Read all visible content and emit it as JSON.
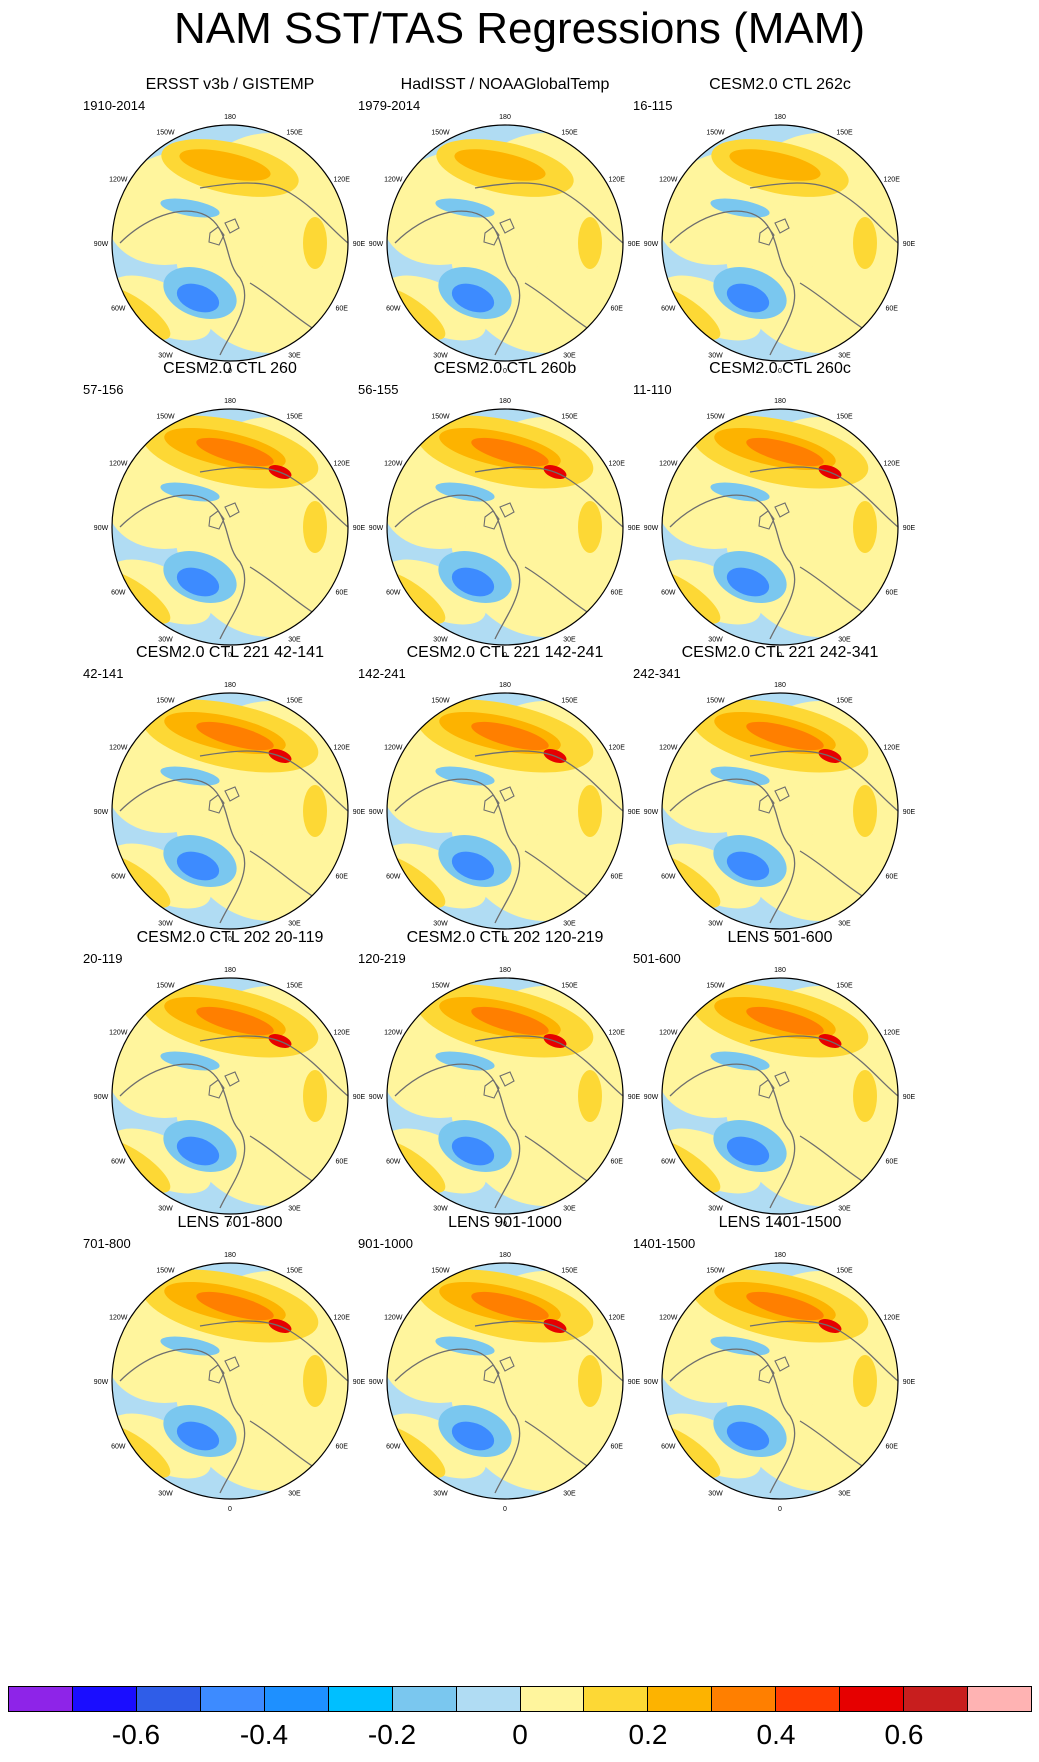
{
  "title": "NAM SST/TAS Regressions (MAM)",
  "longitude_labels": [
    "180",
    "150E",
    "120E",
    "90E",
    "60E",
    "30E",
    "0",
    "30W",
    "60W",
    "90W",
    "120W",
    "150W"
  ],
  "panels": [
    {
      "title": "ERSST v3b / GISTEMP",
      "period": "1910-2014"
    },
    {
      "title": "HadISST / NOAAGlobalTemp",
      "period": "1979-2014"
    },
    {
      "title": "CESM2.0 CTL 262c",
      "period": "16-115"
    },
    {
      "title": "CESM2.0 CTL 260",
      "period": "57-156"
    },
    {
      "title": "CESM2.0 CTL 260b",
      "period": "56-155"
    },
    {
      "title": "CESM2.0 CTL 260c",
      "period": "11-110"
    },
    {
      "title": "CESM2.0 CTL 221 42-141",
      "period": "42-141"
    },
    {
      "title": "CESM2.0 CTL 221 142-241",
      "period": "142-241"
    },
    {
      "title": "CESM2.0 CTL 221 242-341",
      "period": "242-341"
    },
    {
      "title": "CESM2.0 CTL 202 20-119",
      "period": "20-119"
    },
    {
      "title": "CESM2.0 CTL 202 120-219",
      "period": "120-219"
    },
    {
      "title": "LENS 501-600",
      "period": "501-600"
    },
    {
      "title": "LENS 701-800",
      "period": "701-800"
    },
    {
      "title": "LENS 901-1000",
      "period": "901-1000"
    },
    {
      "title": "LENS 1401-1500",
      "period": "1401-1500"
    }
  ],
  "colorbar": {
    "colors": [
      "#8e24e8",
      "#1a0dff",
      "#2f5de8",
      "#3d8bff",
      "#1e90ff",
      "#00bfff",
      "#7ac7ef",
      "#b0dcf3",
      "#fff59d",
      "#fdd835",
      "#fdb300",
      "#ff7f00",
      "#ff3d00",
      "#e60000",
      "#c81e1e",
      "#ffb3b3"
    ],
    "labels": [
      {
        "text": "-0.6",
        "value": -0.6
      },
      {
        "text": "-0.4",
        "value": -0.4
      },
      {
        "text": "-0.2",
        "value": -0.2
      },
      {
        "text": "0",
        "value": 0
      },
      {
        "text": "0.2",
        "value": 0.2
      },
      {
        "text": "0.4",
        "value": 0.4
      },
      {
        "text": "0.6",
        "value": 0.6
      }
    ]
  },
  "field_colors": {
    "ocean": "#b0dcf3",
    "land": "#fff59d",
    "warm": "#fdd835",
    "warmer": "#fdb300",
    "hot": "#ff7f00",
    "hottest": "#e60000",
    "cool": "#7ac7ef",
    "cold": "#3d8bff"
  }
}
